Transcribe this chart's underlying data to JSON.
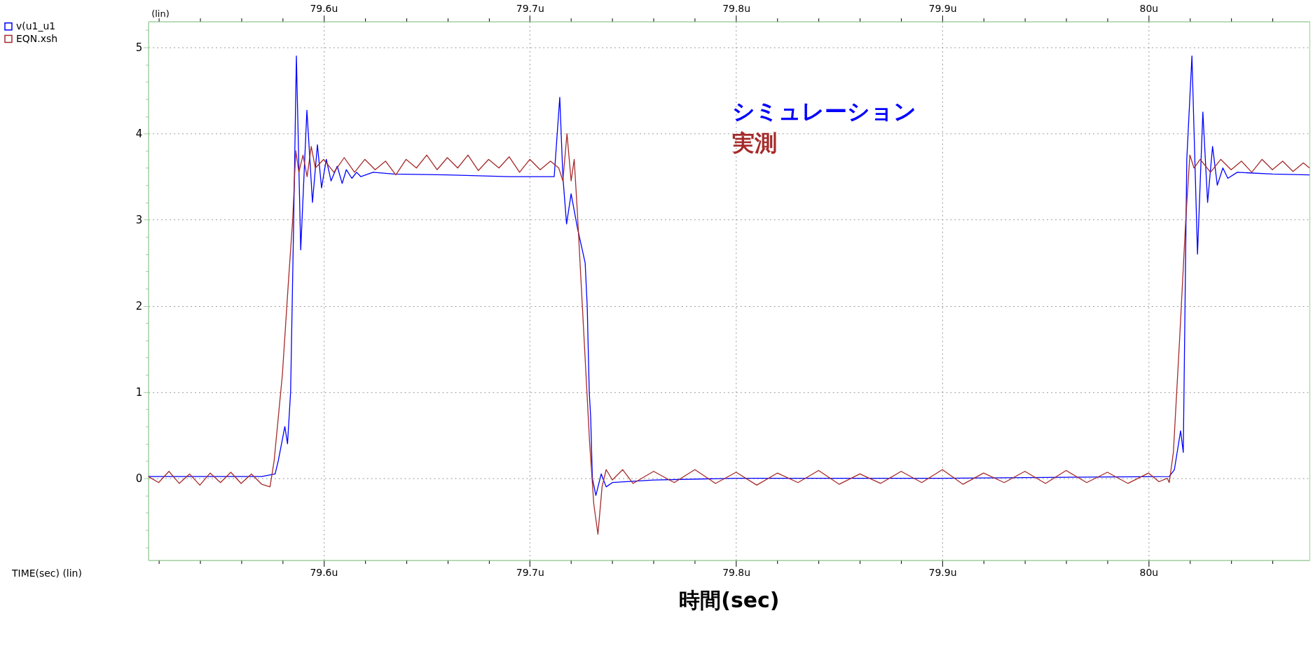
{
  "chart_data": {
    "type": "line",
    "xlabel": "時間(sec)",
    "ylabel": "(lin)",
    "annotations": [
      "シミュレーション",
      "実測",
      "TIME(sec) (lin)"
    ],
    "xlim": [
      79.515,
      80.078
    ],
    "ylim": [
      -0.95,
      5.3
    ],
    "xticks": [
      {
        "value": 79.52,
        "label": null
      },
      {
        "value": 79.54,
        "label": null
      },
      {
        "value": 79.56,
        "label": null
      },
      {
        "value": 79.58,
        "label": null
      },
      {
        "value": 79.6,
        "label": "79.6u"
      },
      {
        "value": 79.62,
        "label": null
      },
      {
        "value": 79.64,
        "label": null
      },
      {
        "value": 79.66,
        "label": null
      },
      {
        "value": 79.68,
        "label": null
      },
      {
        "value": 79.7,
        "label": "79.7u"
      },
      {
        "value": 79.72,
        "label": null
      },
      {
        "value": 79.74,
        "label": null
      },
      {
        "value": 79.76,
        "label": null
      },
      {
        "value": 79.78,
        "label": null
      },
      {
        "value": 79.8,
        "label": "79.8u"
      },
      {
        "value": 79.82,
        "label": null
      },
      {
        "value": 79.84,
        "label": null
      },
      {
        "value": 79.86,
        "label": null
      },
      {
        "value": 79.88,
        "label": null
      },
      {
        "value": 79.9,
        "label": "79.9u"
      },
      {
        "value": 79.92,
        "label": null
      },
      {
        "value": 79.94,
        "label": null
      },
      {
        "value": 79.96,
        "label": null
      },
      {
        "value": 79.98,
        "label": null
      },
      {
        "value": 80.0,
        "label": "80u"
      },
      {
        "value": 80.02,
        "label": null
      },
      {
        "value": 80.04,
        "label": null
      },
      {
        "value": 80.06,
        "label": null
      }
    ],
    "x2lim": [
      79.515,
      80.078
    ],
    "x2ticks": [
      {
        "value": 79.52,
        "label": null
      },
      {
        "value": 79.54,
        "label": null
      },
      {
        "value": 79.56,
        "label": null
      },
      {
        "value": 79.58,
        "label": null
      },
      {
        "value": 79.6,
        "label": "79.6u"
      },
      {
        "value": 79.62,
        "label": null
      },
      {
        "value": 79.64,
        "label": null
      },
      {
        "value": 79.66,
        "label": null
      },
      {
        "value": 79.68,
        "label": null
      },
      {
        "value": 79.7,
        "label": "79.7u"
      },
      {
        "value": 79.72,
        "label": null
      },
      {
        "value": 79.74,
        "label": null
      },
      {
        "value": 79.76,
        "label": null
      },
      {
        "value": 79.78,
        "label": null
      },
      {
        "value": 79.8,
        "label": "79.8u"
      },
      {
        "value": 79.82,
        "label": null
      },
      {
        "value": 79.84,
        "label": null
      },
      {
        "value": 79.86,
        "label": null
      },
      {
        "value": 79.88,
        "label": null
      },
      {
        "value": 79.9,
        "label": "79.9u"
      },
      {
        "value": 79.92,
        "label": null
      },
      {
        "value": 79.94,
        "label": null
      },
      {
        "value": 79.96,
        "label": null
      },
      {
        "value": 79.98,
        "label": null
      },
      {
        "value": 80.0,
        "label": "80u"
      },
      {
        "value": 80.02,
        "label": null
      },
      {
        "value": 80.04,
        "label": null
      },
      {
        "value": 80.06,
        "label": null
      }
    ],
    "yticks": [
      {
        "value": -0.8,
        "label": null
      },
      {
        "value": -0.6,
        "label": null
      },
      {
        "value": -0.4,
        "label": null
      },
      {
        "value": -0.2,
        "label": null
      },
      0,
      {
        "value": 0.2,
        "label": null
      },
      {
        "value": 0.4,
        "label": null
      },
      {
        "value": 0.6,
        "label": null
      },
      {
        "value": 0.8,
        "label": null
      },
      1,
      {
        "value": 1.2,
        "label": null
      },
      {
        "value": 1.4,
        "label": null
      },
      {
        "value": 1.6,
        "label": null
      },
      {
        "value": 1.8,
        "label": null
      },
      2,
      {
        "value": 2.2,
        "label": null
      },
      {
        "value": 2.4,
        "label": null
      },
      {
        "value": 2.6,
        "label": null
      },
      {
        "value": 2.8,
        "label": null
      },
      3,
      {
        "value": 3.2,
        "label": null
      },
      {
        "value": 3.4,
        "label": null
      },
      {
        "value": 3.6,
        "label": null
      },
      {
        "value": 3.8,
        "label": null
      },
      4,
      {
        "value": 4.2,
        "label": null
      },
      {
        "value": 4.4,
        "label": null
      },
      {
        "value": 4.6,
        "label": null
      },
      {
        "value": 4.8,
        "label": null
      },
      5,
      {
        "value": 5.2,
        "label": null
      }
    ],
    "grid": true,
    "legend": "top left",
    "marker": "none",
    "line_style": "solid",
    "series": [
      {
        "name": "v(u1_u1",
        "color": "#0000ff",
        "x": [
          79.515,
          79.53,
          79.55,
          79.57,
          79.5765,
          79.578,
          79.5812,
          79.5825,
          79.584,
          79.5855,
          79.5868,
          79.5889,
          79.5919,
          79.5946,
          79.597,
          79.599,
          79.6013,
          79.6036,
          79.6066,
          79.609,
          79.611,
          79.6137,
          79.616,
          79.618,
          79.624,
          79.634,
          79.66,
          79.69,
          79.7118,
          79.7145,
          79.716,
          79.7178,
          79.72,
          79.7231,
          79.7268,
          79.7278,
          79.7288,
          79.7295,
          79.7303,
          79.732,
          79.7346,
          79.737,
          79.74,
          79.76,
          79.8,
          79.9,
          80.01,
          80.0125,
          80.0155,
          80.0168,
          80.0185,
          80.021,
          80.0237,
          80.0263,
          80.0286,
          80.031,
          80.0333,
          80.036,
          80.0384,
          80.043,
          80.06,
          80.078
        ],
        "values": [
          0.02,
          0.02,
          0.02,
          0.02,
          0.05,
          0.2,
          0.6,
          0.4,
          1.0,
          3.0,
          4.9,
          2.65,
          4.27,
          3.2,
          3.87,
          3.37,
          3.7,
          3.45,
          3.62,
          3.42,
          3.58,
          3.48,
          3.55,
          3.5,
          3.55,
          3.53,
          3.52,
          3.5,
          3.5,
          4.42,
          3.5,
          2.95,
          3.3,
          2.9,
          2.5,
          2.0,
          1.0,
          0.7,
          0.0,
          -0.2,
          0.05,
          -0.1,
          -0.05,
          -0.02,
          0.0,
          0.0,
          0.02,
          0.1,
          0.55,
          0.3,
          3.7,
          4.9,
          2.6,
          4.25,
          3.2,
          3.85,
          3.4,
          3.6,
          3.48,
          3.55,
          3.53,
          3.52
        ]
      },
      {
        "name": "EQN.xsh",
        "color": "#a52a2a",
        "x": [
          79.515,
          79.52,
          79.525,
          79.53,
          79.535,
          79.54,
          79.545,
          79.55,
          79.555,
          79.56,
          79.565,
          79.57,
          79.574,
          79.576,
          79.58,
          79.583,
          79.585,
          79.5865,
          79.588,
          79.59,
          79.592,
          79.594,
          79.596,
          79.6,
          79.605,
          79.61,
          79.615,
          79.62,
          79.625,
          79.63,
          79.635,
          79.64,
          79.645,
          79.65,
          79.655,
          79.66,
          79.665,
          79.67,
          79.675,
          79.68,
          79.685,
          79.69,
          79.695,
          79.7,
          79.705,
          79.71,
          79.714,
          79.716,
          79.718,
          79.72,
          79.7215,
          79.723,
          79.725,
          79.727,
          79.729,
          79.731,
          79.733,
          79.735,
          79.737,
          79.74,
          79.745,
          79.75,
          79.76,
          79.77,
          79.78,
          79.79,
          79.8,
          79.81,
          79.82,
          79.83,
          79.84,
          79.85,
          79.86,
          79.87,
          79.88,
          79.89,
          79.9,
          79.91,
          79.92,
          79.93,
          79.94,
          79.95,
          79.96,
          79.97,
          79.98,
          79.99,
          80.0,
          80.005,
          80.009,
          80.01,
          80.012,
          80.015,
          80.018,
          80.02,
          80.022,
          80.025,
          80.03,
          80.035,
          80.04,
          80.045,
          80.05,
          80.055,
          80.06,
          80.065,
          80.07,
          80.075,
          80.078
        ],
        "values": [
          0.02,
          -0.05,
          0.08,
          -0.06,
          0.05,
          -0.08,
          0.06,
          -0.05,
          0.07,
          -0.06,
          0.05,
          -0.07,
          -0.1,
          0.2,
          1.2,
          2.3,
          3.0,
          3.8,
          3.55,
          3.75,
          3.5,
          3.85,
          3.6,
          3.7,
          3.55,
          3.72,
          3.55,
          3.7,
          3.58,
          3.68,
          3.52,
          3.7,
          3.6,
          3.75,
          3.58,
          3.72,
          3.6,
          3.75,
          3.57,
          3.7,
          3.6,
          3.73,
          3.55,
          3.7,
          3.58,
          3.68,
          3.6,
          3.45,
          4.0,
          3.45,
          3.7,
          3.1,
          2.2,
          1.3,
          0.4,
          -0.3,
          -0.65,
          -0.1,
          0.1,
          -0.02,
          0.1,
          -0.06,
          0.08,
          -0.05,
          0.1,
          -0.06,
          0.07,
          -0.08,
          0.06,
          -0.05,
          0.09,
          -0.07,
          0.05,
          -0.06,
          0.08,
          -0.05,
          0.1,
          -0.07,
          0.06,
          -0.05,
          0.08,
          -0.06,
          0.09,
          -0.05,
          0.07,
          -0.06,
          0.06,
          -0.04,
          0.0,
          -0.05,
          0.3,
          1.6,
          3.0,
          3.75,
          3.6,
          3.7,
          3.55,
          3.7,
          3.58,
          3.68,
          3.55,
          3.7,
          3.58,
          3.68,
          3.56,
          3.66,
          3.6
        ]
      }
    ]
  }
}
